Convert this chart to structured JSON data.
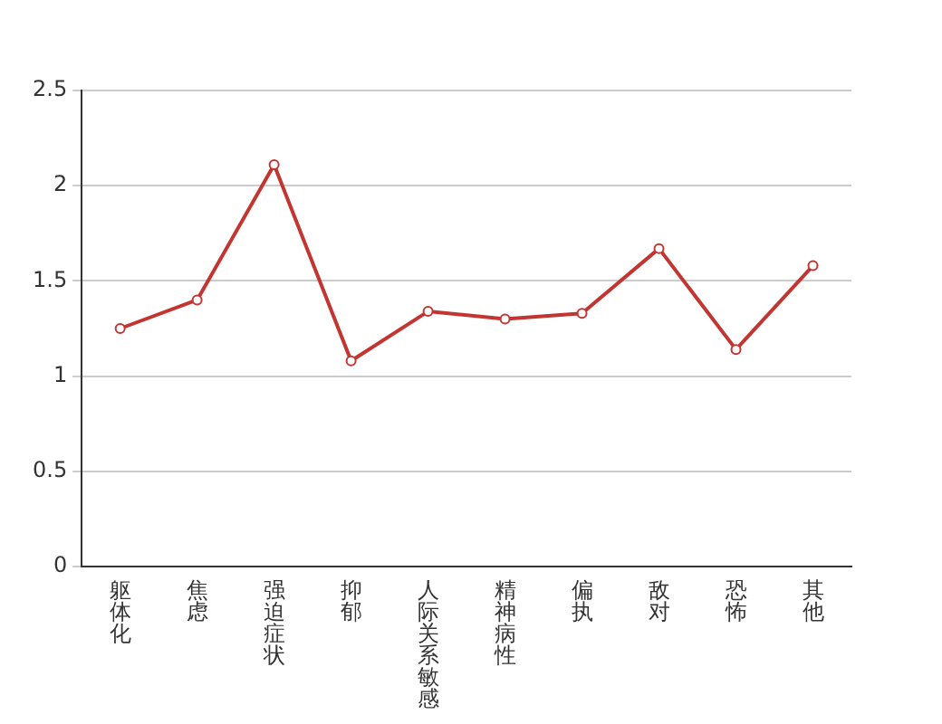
{
  "chart_data": {
    "type": "line",
    "categories": [
      "躯体化",
      "焦虑",
      "强迫症状",
      "抑郁",
      "人际关系敏感",
      "精神病性",
      "偏执",
      "敌对",
      "恐怖",
      "其他"
    ],
    "series": [
      {
        "color": "#c23531",
        "values": [
          1.25,
          1.4,
          2.11,
          1.08,
          1.34,
          1.3,
          1.33,
          1.67,
          1.14,
          1.58
        ]
      }
    ],
    "ylim": [
      0,
      2.5
    ],
    "yticks": [
      0,
      0.5,
      1,
      1.5,
      2,
      2.5
    ],
    "grid": "y",
    "legend": false,
    "marker": "circle",
    "line_style": "solid"
  }
}
